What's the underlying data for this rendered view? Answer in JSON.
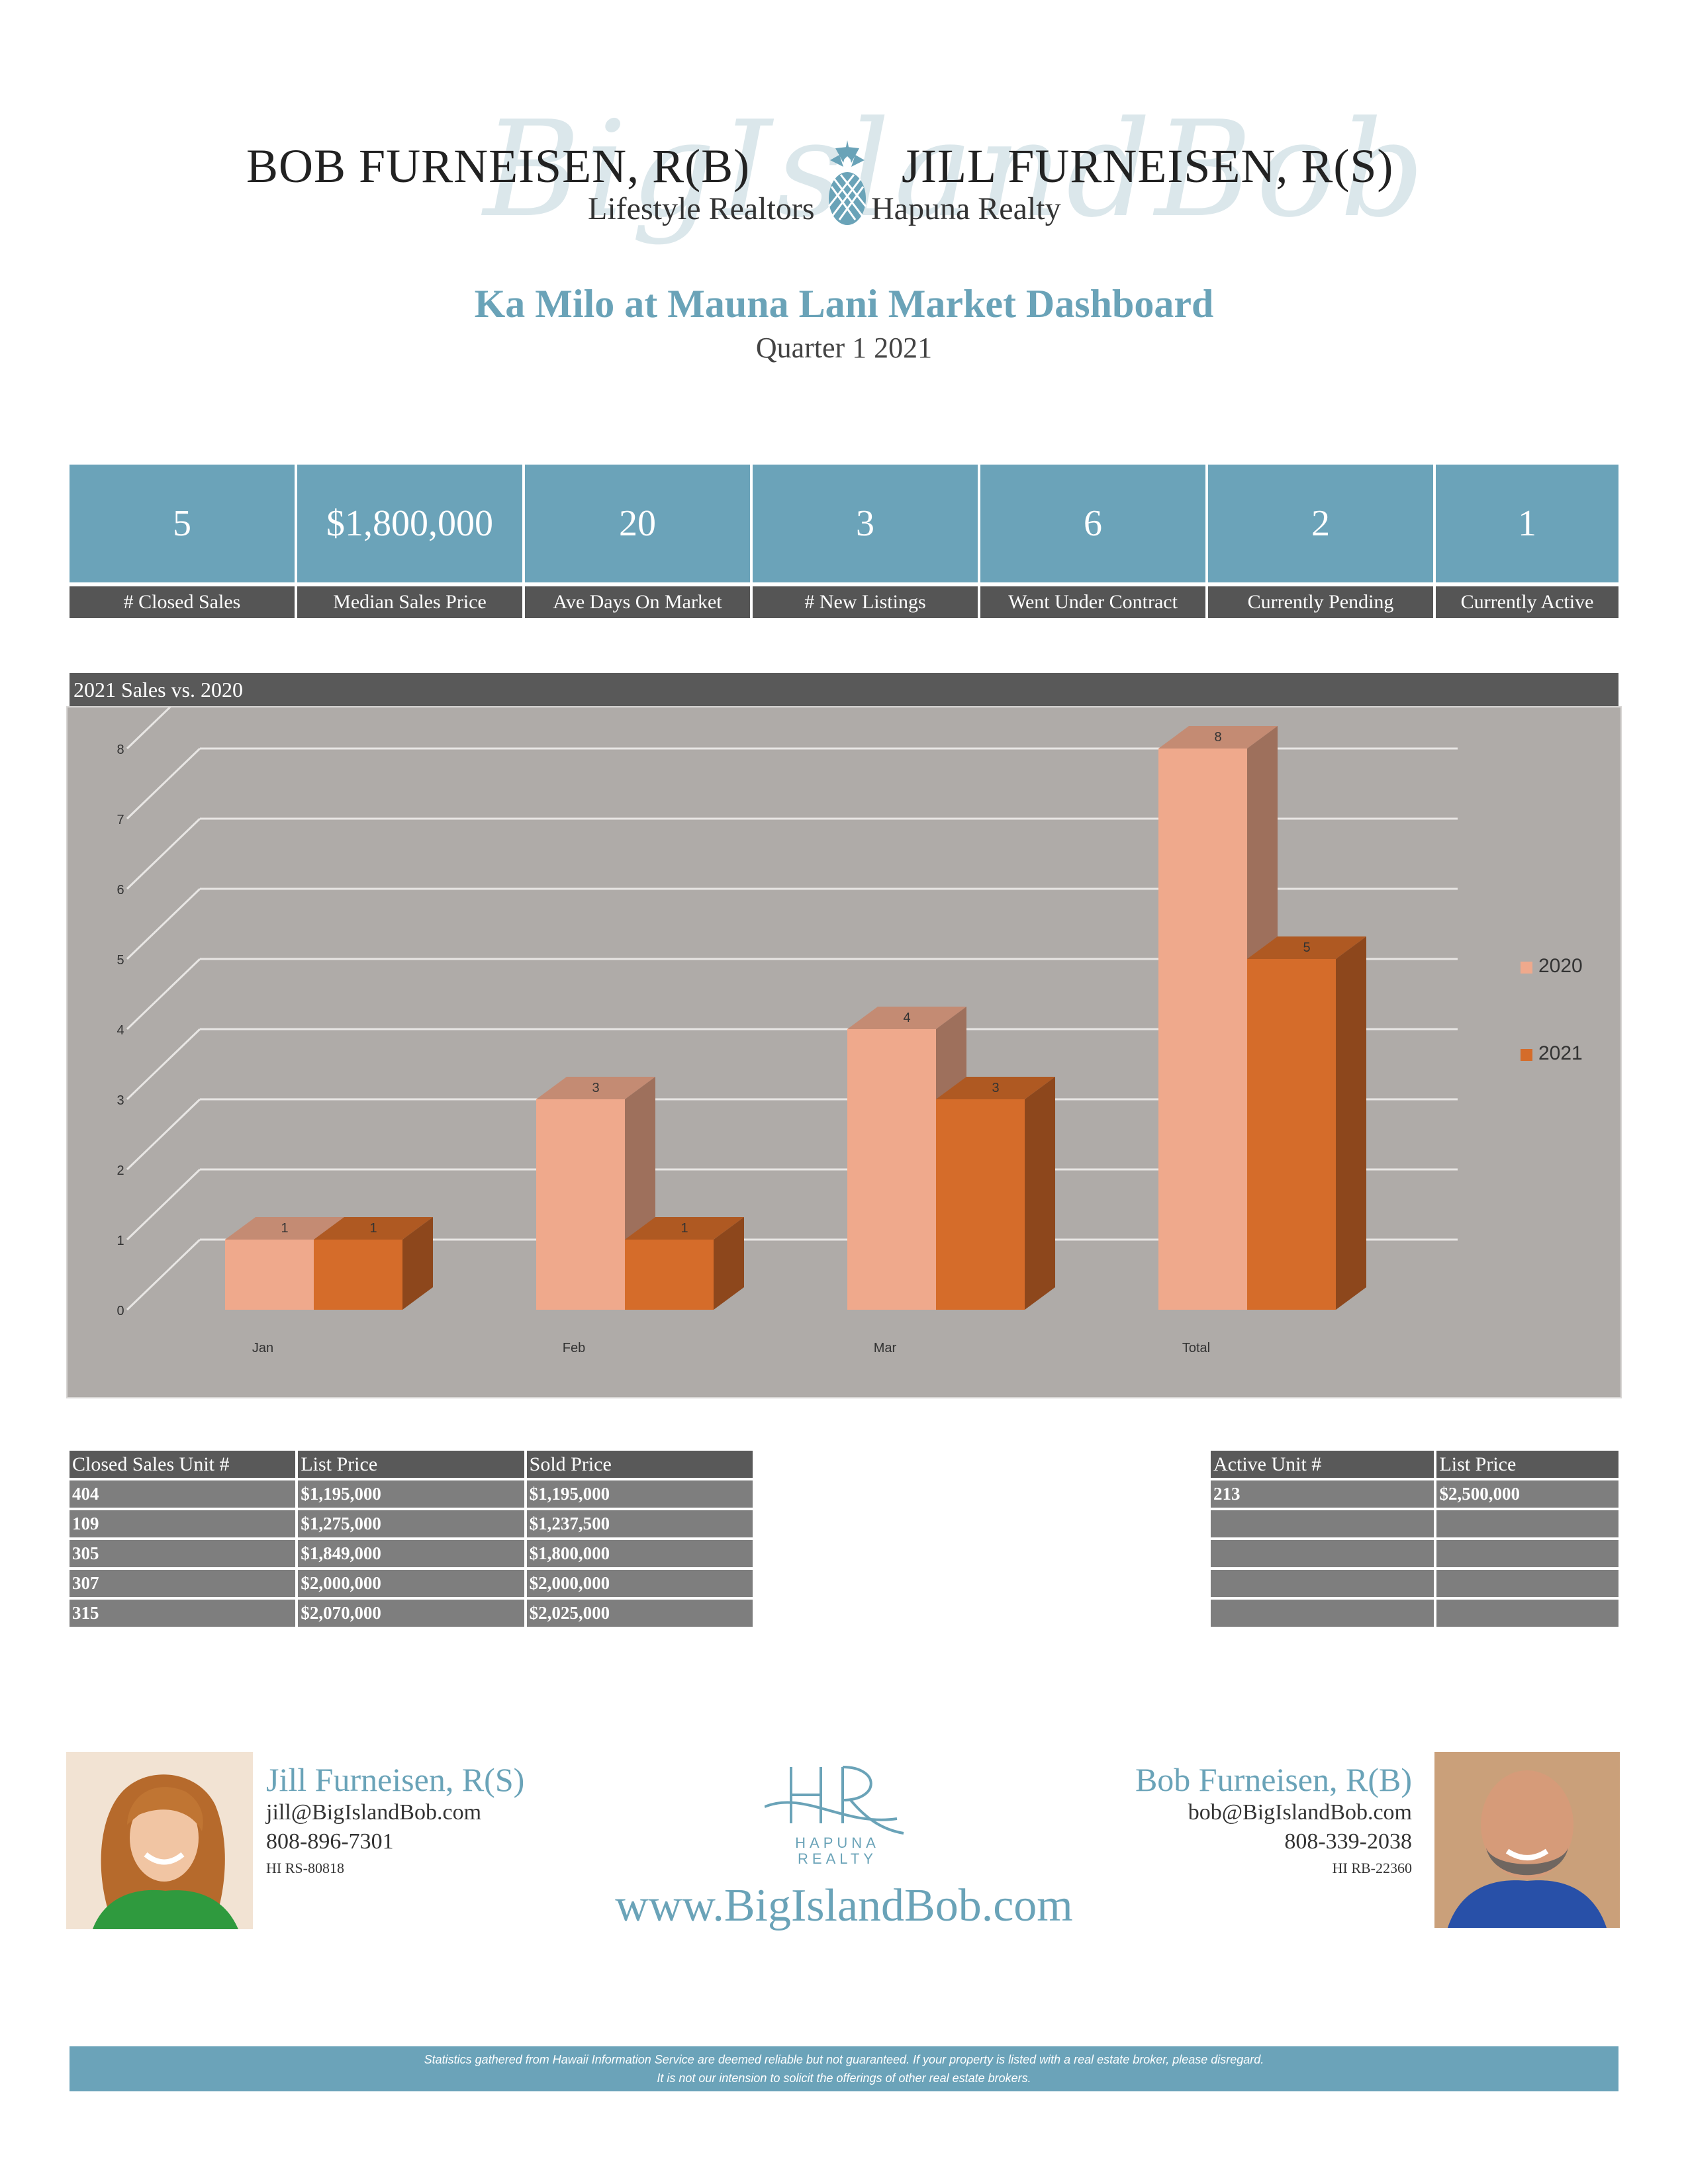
{
  "header": {
    "left_name": "BOB FURNEISEN, R(B)",
    "right_name": "JILL FURNEISEN, R(S)",
    "left_brokerage": "Lifestyle Realtors",
    "right_brokerage": "Hapuna Realty",
    "watermark": "BigIslandBob"
  },
  "title": "Ka Milo at Mauna Lani Market Dashboard",
  "subtitle": "Quarter 1 2021",
  "stats": [
    {
      "value": "5",
      "label": "# Closed Sales"
    },
    {
      "value": "$1,800,000",
      "label": "Median Sales Price"
    },
    {
      "value": "20",
      "label": "Ave Days On Market"
    },
    {
      "value": "3",
      "label": "# New Listings"
    },
    {
      "value": "6",
      "label": "Went Under Contract"
    },
    {
      "value": "2",
      "label": "Currently Pending"
    },
    {
      "value": "1",
      "label": "Currently Active"
    }
  ],
  "chart_header": "2021 Sales vs. 2020",
  "chart_data": {
    "type": "bar",
    "categories": [
      "Jan",
      "Feb",
      "Mar",
      "Total"
    ],
    "series": [
      {
        "name": "2020",
        "values": [
          1,
          3,
          4,
          8
        ],
        "color": "#efa98c"
      },
      {
        "name": "2021",
        "values": [
          1,
          1,
          3,
          5
        ],
        "color": "#d56c2a"
      }
    ],
    "yticks": [
      "0",
      "1",
      "2",
      "3",
      "4",
      "5",
      "6",
      "7",
      "8"
    ],
    "ylim": [
      0,
      8
    ],
    "legend": "right",
    "grid": true,
    "style": "3d"
  },
  "closed_table": {
    "headers": [
      "Closed Sales Unit #",
      "List Price",
      "Sold Price"
    ],
    "rows": [
      [
        "404",
        "$1,195,000",
        "$1,195,000"
      ],
      [
        "109",
        "$1,275,000",
        "$1,237,500"
      ],
      [
        "305",
        "$1,849,000",
        "$1,800,000"
      ],
      [
        "307",
        "$2,000,000",
        "$2,000,000"
      ],
      [
        "315",
        "$2,070,000",
        "$2,025,000"
      ]
    ]
  },
  "active_table": {
    "headers": [
      "Active Unit #",
      "List Price"
    ],
    "rows": [
      [
        "213",
        "$2,500,000"
      ],
      [
        "",
        ""
      ],
      [
        "",
        ""
      ],
      [
        "",
        ""
      ],
      [
        "",
        ""
      ]
    ]
  },
  "jill": {
    "name": "Jill Furneisen, R(S)",
    "email": "jill@BigIslandBob.com",
    "phone": "808-896-7301",
    "license": "HI RS-80818"
  },
  "bob": {
    "name": "Bob Furneisen, R(B)",
    "email": "bob@BigIslandBob.com",
    "phone": "808-339-2038",
    "license": "HI RB-22360"
  },
  "logo": {
    "line1": "HAPUNA",
    "line2": "REALTY"
  },
  "website": "www.BigIslandBob.com",
  "footer": {
    "line1": "Statistics gathered from Hawaii Information Service are deemed reliable but not guaranteed.  If your property is listed with a real estate broker, please disregard.",
    "line2": "It is not our intension to solicit the offerings of other real estate brokers."
  },
  "colors": {
    "accent": "#6ba3b9",
    "dark": "#595959",
    "series2020": "#efa98c",
    "series2021": "#d56c2a"
  }
}
